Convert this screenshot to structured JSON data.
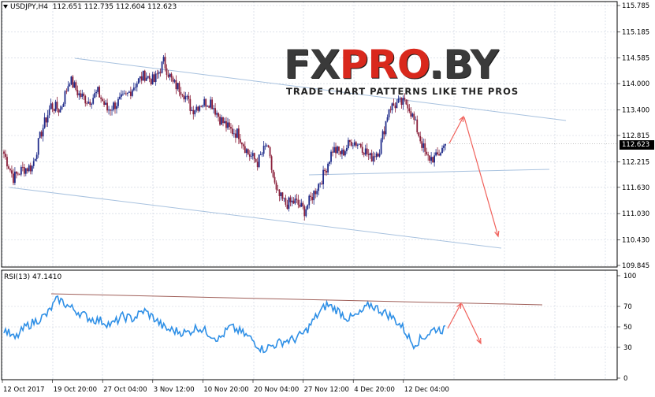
{
  "header": {
    "symbol": "USDJPY,H4",
    "open": "112.651",
    "high": "112.735",
    "low": "112.604",
    "close": "112.623"
  },
  "price_axis": {
    "ticks": [
      "115.785",
      "115.185",
      "114.585",
      "114.000",
      "113.400",
      "112.815",
      "112.215",
      "111.630",
      "111.030",
      "110.430",
      "109.845"
    ],
    "current_price": "112.623"
  },
  "rsi": {
    "label": "RSI(13) 47.1410",
    "levels": [
      "100",
      "70",
      "50",
      "30",
      "0"
    ]
  },
  "time_axis": {
    "labels": [
      "12 Oct 2017",
      "19 Oct 20:00",
      "27 Oct 04:00",
      "3 Nov 12:00",
      "10 Nov 20:00",
      "20 Nov 04:00",
      "27 Nov 12:00",
      "4 Dec 20:00",
      "12 Dec 04:00"
    ]
  },
  "logo": {
    "main_pre": "FX",
    "main_accent": "PRO",
    "main_post": ".BY",
    "tagline": "TRADE CHART PATTERNS LIKE THE PROS"
  },
  "colors": {
    "bull_candle": "#1f2b8a",
    "bear_candle": "#8a1f3a",
    "rsi_line": "#2e8fe6",
    "trend_line": "#a8c2df",
    "rsi_trend": "#a0605a",
    "forecast_arrow": "#f0605a",
    "grid": "#c9d0de"
  },
  "chart_data": {
    "type": "candlestick",
    "symbol": "USDJPY",
    "timeframe": "H4",
    "ylim": [
      109.845,
      115.785
    ],
    "anchors": [
      {
        "x": "12 Oct 2017",
        "close": 112.4
      },
      {
        "x": "13 Oct 2017",
        "close": 111.85
      },
      {
        "x": "16 Oct 2017",
        "close": 112.05
      },
      {
        "x": "17 Oct 2017",
        "close": 112.1
      },
      {
        "x": "18 Oct 2017",
        "close": 112.9
      },
      {
        "x": "19 Oct 2017",
        "close": 113.5
      },
      {
        "x": "20 Oct 2017",
        "close": 113.4
      },
      {
        "x": "23 Oct 2017",
        "close": 114.1
      },
      {
        "x": "24 Oct 2017",
        "close": 113.75
      },
      {
        "x": "25 Oct 2017",
        "close": 113.6
      },
      {
        "x": "26 Oct 2017",
        "close": 113.8
      },
      {
        "x": "27 Oct 2017",
        "close": 113.4
      },
      {
        "x": "30 Oct 2017",
        "close": 113.55
      },
      {
        "x": "31 Oct 2017",
        "close": 113.7
      },
      {
        "x": "1 Nov 2017",
        "close": 114.0
      },
      {
        "x": "2 Nov 2017",
        "close": 114.2
      },
      {
        "x": "3 Nov 2017",
        "close": 114.05
      },
      {
        "x": "6 Nov 2017",
        "close": 114.5
      },
      {
        "x": "7 Nov 2017",
        "close": 114.0
      },
      {
        "x": "8 Nov 2017",
        "close": 113.85
      },
      {
        "x": "9 Nov 2017",
        "close": 113.4
      },
      {
        "x": "10 Nov 2017",
        "close": 113.55
      },
      {
        "x": "13 Nov 2017",
        "close": 113.6
      },
      {
        "x": "14 Nov 2017",
        "close": 113.2
      },
      {
        "x": "15 Nov 2017",
        "close": 112.95
      },
      {
        "x": "16 Nov 2017",
        "close": 112.85
      },
      {
        "x": "17 Nov 2017",
        "close": 112.4
      },
      {
        "x": "20 Nov 2017",
        "close": 112.2
      },
      {
        "x": "21 Nov 2017",
        "close": 112.6
      },
      {
        "x": "22 Nov 2017",
        "close": 111.5
      },
      {
        "x": "23 Nov 2017",
        "close": 111.25
      },
      {
        "x": "24 Nov 2017",
        "close": 111.3
      },
      {
        "x": "27 Nov 2017",
        "close": 111.1
      },
      {
        "x": "28 Nov 2017",
        "close": 111.5
      },
      {
        "x": "29 Nov 2017",
        "close": 111.9
      },
      {
        "x": "30 Nov 2017",
        "close": 112.5
      },
      {
        "x": "1 Dec 2017",
        "close": 112.4
      },
      {
        "x": "4 Dec 2017",
        "close": 112.7
      },
      {
        "x": "5 Dec 2017",
        "close": 112.6
      },
      {
        "x": "6 Dec 2017",
        "close": 112.3
      },
      {
        "x": "7 Dec 2017",
        "close": 112.5
      },
      {
        "x": "8 Dec 2017",
        "close": 113.45
      },
      {
        "x": "11 Dec 2017",
        "close": 113.55
      },
      {
        "x": "12 Dec 2017",
        "close": 113.55
      },
      {
        "x": "13 Dec 2017",
        "close": 112.95
      },
      {
        "x": "14 Dec 2017",
        "close": 112.3
      },
      {
        "x": "15 Dec 2017",
        "close": 112.3
      },
      {
        "x": "18 Dec 2017",
        "close": 112.62
      }
    ],
    "rsi_anchors": [
      48,
      38,
      50,
      56,
      62,
      78,
      70,
      64,
      58,
      56,
      52,
      60,
      58,
      66,
      58,
      48,
      46,
      44,
      50,
      44,
      38,
      50,
      45,
      38,
      28,
      32,
      36,
      38,
      45,
      60,
      72,
      66,
      58,
      62,
      72,
      66,
      60,
      50,
      33,
      40,
      48,
      47
    ]
  }
}
